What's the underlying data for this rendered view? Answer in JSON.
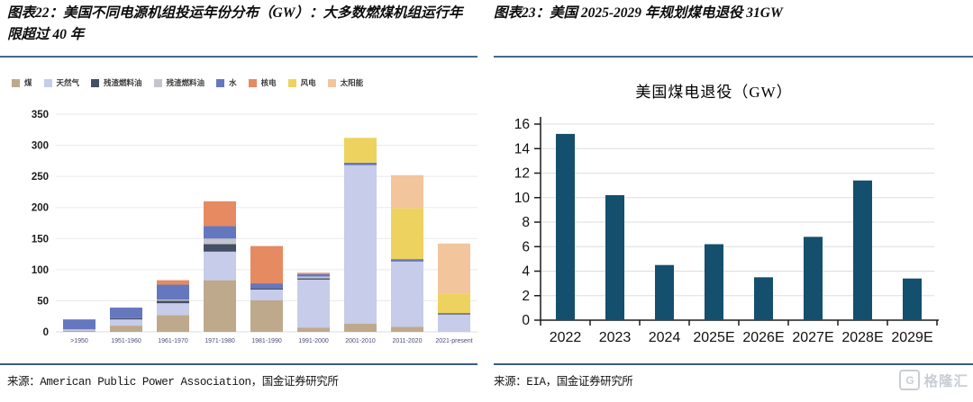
{
  "figure22": {
    "title": "图表22：美国不同电源机组投运年份分布（GW）：大多数燃煤机组运行年限超过 40 年",
    "source": "来源：American Public Power Association，国金证券研究所"
  },
  "figure23": {
    "title": "图表23：美国 2025-2029 年规划煤电退役 31GW",
    "source": "来源：EIA，国金证券研究所"
  },
  "watermark": {
    "glyph": "G",
    "text": "格隆汇",
    "color": "#c9ced5"
  },
  "chart_data": [
    {
      "type": "bar",
      "stacked": true,
      "title": "",
      "xlabel": "",
      "ylabel": "",
      "categories": [
        ">1950",
        "1951-1960",
        "1961-1970",
        "1971-1980",
        "1981-1990",
        "1991-2000",
        "2001-2010",
        "2011-2020",
        "2021-present"
      ],
      "series": [
        {
          "name": "煤",
          "color": "#BEA98C",
          "values": [
            2,
            10,
            27,
            83,
            51,
            7,
            13,
            8,
            0
          ]
        },
        {
          "name": "天然气",
          "color": "#C6CCE9",
          "values": [
            2,
            10,
            19,
            46,
            17,
            77,
            255,
            105,
            28
          ]
        },
        {
          "name": "残渣燃料油",
          "color": "#454F63",
          "values": [
            0,
            2,
            4,
            12,
            2,
            2,
            0,
            0,
            2
          ]
        },
        {
          "name": "残渣燃料油",
          "color": "#C3C4CD",
          "values": [
            0,
            0,
            2,
            9,
            0,
            3,
            0,
            0,
            0
          ]
        },
        {
          "name": "水",
          "color": "#6577BF",
          "values": [
            16,
            17,
            24,
            20,
            8,
            4,
            4,
            4,
            0
          ]
        },
        {
          "name": "核电",
          "color": "#E68A61",
          "values": [
            0,
            0,
            7,
            40,
            60,
            2,
            0,
            0,
            0
          ]
        },
        {
          "name": "风电",
          "color": "#EDD260",
          "values": [
            0,
            0,
            0,
            0,
            0,
            0,
            40,
            82,
            32
          ]
        },
        {
          "name": "太阳能",
          "color": "#F2C59C",
          "values": [
            0,
            0,
            0,
            0,
            0,
            0,
            0,
            53,
            80
          ]
        }
      ],
      "ylim": [
        0,
        350
      ],
      "yticks": [
        0,
        50,
        100,
        150,
        200,
        250,
        300,
        350
      ],
      "grid": true,
      "legend_position": "top"
    },
    {
      "type": "bar",
      "stacked": false,
      "title": "美国煤电退役（GW）",
      "xlabel": "",
      "ylabel": "",
      "categories": [
        "2022",
        "2023",
        "2024",
        "2025E",
        "2026E",
        "2027E",
        "2028E",
        "2029E"
      ],
      "values": [
        15.2,
        10.2,
        4.5,
        6.2,
        3.5,
        6.8,
        11.4,
        3.4
      ],
      "bar_color": "#144F6D",
      "ylim": [
        0,
        16
      ],
      "yticks": [
        0,
        2,
        4,
        6,
        8,
        10,
        12,
        14,
        16
      ],
      "grid": true,
      "legend_position": "none"
    }
  ]
}
